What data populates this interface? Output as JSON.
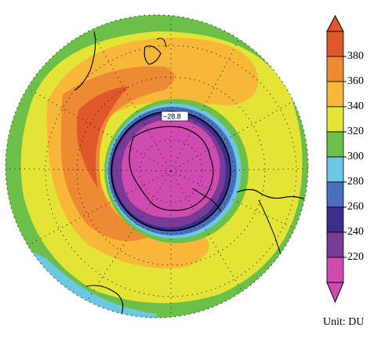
{
  "map": {
    "contour_label": "~28.8",
    "unit_label": "Unit: DU"
  },
  "colorbar": {
    "ticks": [
      "380",
      "360",
      "340",
      "320",
      "300",
      "280",
      "260",
      "240",
      "220"
    ],
    "colors": [
      "#e0572b",
      "#ee8a34",
      "#f7b83a",
      "#e4e437",
      "#6cc04a",
      "#6cc7e3",
      "#4a6fbf",
      "#3a2f8c",
      "#7a3a98",
      "#cf4bb0"
    ],
    "top_arrow_color": "#e0572b",
    "bottom_arrow_color": "#cf4bb0"
  }
}
